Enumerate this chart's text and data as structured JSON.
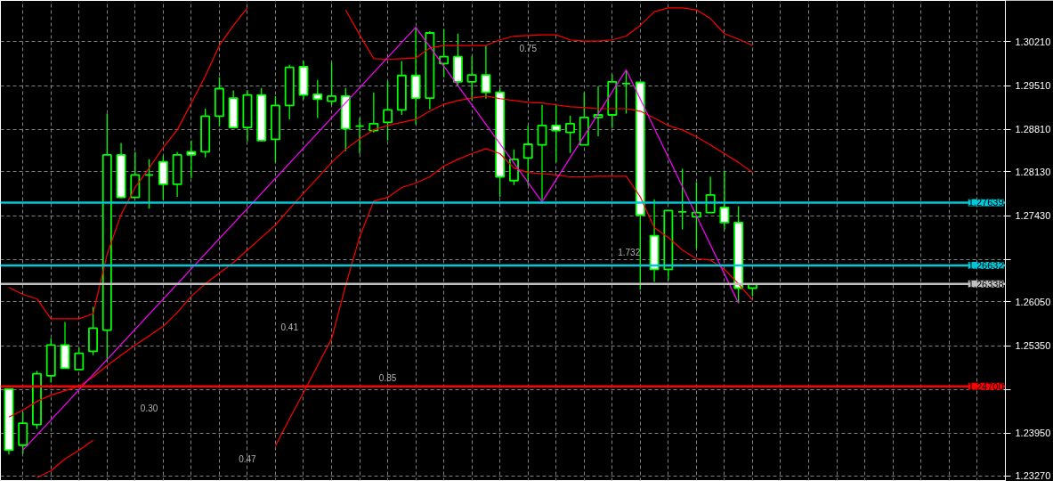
{
  "chart_data": {
    "type": "candlestick",
    "categories": [
      null,
      null,
      null,
      null,
      null,
      null,
      null,
      null,
      null,
      null,
      null,
      null,
      null,
      null,
      null,
      null,
      null,
      null,
      null,
      null,
      null,
      null,
      null,
      null,
      null,
      null,
      null,
      null,
      null,
      null,
      null,
      null,
      null,
      null,
      null,
      null,
      null,
      null,
      null,
      null,
      null,
      null,
      null,
      null,
      null,
      null,
      null,
      null,
      null,
      null,
      null,
      null,
      null,
      null
    ],
    "ylim": [
      1.2318,
      1.3087
    ],
    "yticks": [
      {
        "value": 1.3021,
        "label": "1.30210"
      },
      {
        "value": 1.2951,
        "label": "1.29510"
      },
      {
        "value": 1.2881,
        "label": "1.28810"
      },
      {
        "value": 1.2813,
        "label": "1.28130"
      },
      {
        "value": 1.2743,
        "label": "1.27430"
      },
      {
        "value": 1.2673,
        "label": null
      },
      {
        "value": 1.2605,
        "label": "1.26050"
      },
      {
        "value": 1.2535,
        "label": "1.25350"
      },
      {
        "value": 1.2465,
        "label": null
      },
      {
        "value": 1.2395,
        "label": "1.23950"
      },
      {
        "value": 1.2327,
        "label": "1.23270"
      }
    ],
    "tick_labels": "y",
    "grid": true,
    "series": [
      {
        "color": "#00ff00",
        "colors": [
          "#ffffff",
          "#000000",
          "#000000",
          "#000000",
          "#ffffff",
          "#000000",
          "#000000",
          "#000000",
          "#ffffff",
          "#000000",
          "#00ff00",
          "#ffffff",
          "#000000",
          "#ffffff",
          "#000000",
          "#000000",
          "#ffffff",
          "#000000",
          "#ffffff",
          "#000000",
          "#000000",
          "#ffffff",
          "#ffffff",
          "#000000",
          "#ffffff",
          "#00ff00",
          "#000000",
          "#000000",
          "#000000",
          "#ffffff",
          "#000000",
          "#000000",
          "#ffffff",
          "#000000",
          "#ffffff",
          "#ffffff",
          "#000000",
          "#000000",
          "#000000",
          "#ffffff",
          "#000000",
          "#000000",
          "#000000",
          "#000000",
          "#00ff00",
          "#ffffff",
          "#ffffff",
          "#000000",
          "#00ff00",
          "#000000",
          "#000000",
          "#ffffff",
          "#ffffff",
          "#000000"
        ],
        "ohlc": [
          [
            1.2466,
            1.2466,
            1.2361,
            1.2368
          ],
          [
            1.2376,
            1.2429,
            1.2362,
            1.2411
          ],
          [
            1.2409,
            1.2495,
            1.2402,
            1.249
          ],
          [
            1.2487,
            1.2547,
            1.2476,
            1.2536
          ],
          [
            1.2536,
            1.2573,
            1.2499,
            1.2499
          ],
          [
            1.2497,
            1.2532,
            1.2497,
            1.2523
          ],
          [
            1.2526,
            1.2597,
            1.252,
            1.2563
          ],
          [
            1.256,
            1.2906,
            1.251,
            1.284
          ],
          [
            1.284,
            1.2859,
            1.2771,
            1.2772
          ],
          [
            1.2772,
            1.2845,
            1.2772,
            1.2808
          ],
          [
            1.2808,
            1.2833,
            1.2754,
            1.2808
          ],
          [
            1.2829,
            1.2839,
            1.2768,
            1.2793
          ],
          [
            1.2793,
            1.2845,
            1.2773,
            1.284
          ],
          [
            1.2845,
            1.2863,
            1.2803,
            1.284
          ],
          [
            1.2845,
            1.2914,
            1.2836,
            1.2902
          ],
          [
            1.2902,
            1.2964,
            1.2886,
            1.2946
          ],
          [
            1.2931,
            1.2943,
            1.2884,
            1.2884
          ],
          [
            1.2884,
            1.2944,
            1.2862,
            1.2936
          ],
          [
            1.2936,
            1.2947,
            1.2862,
            1.2863
          ],
          [
            1.2865,
            1.2934,
            1.2828,
            1.2919
          ],
          [
            1.2919,
            1.2984,
            1.2897,
            1.298
          ],
          [
            1.2981,
            1.299,
            1.2929,
            1.2936
          ],
          [
            1.2937,
            1.296,
            1.2899,
            1.2929
          ],
          [
            1.2926,
            1.2988,
            1.292,
            1.2934
          ],
          [
            1.2934,
            1.2947,
            1.2846,
            1.2882
          ],
          [
            1.2886,
            1.2899,
            1.2842,
            1.2886
          ],
          [
            1.2879,
            1.294,
            1.2876,
            1.289
          ],
          [
            1.2892,
            1.2958,
            1.2863,
            1.2912
          ],
          [
            1.2912,
            1.299,
            1.2904,
            1.2967
          ],
          [
            1.2967,
            1.3044,
            1.2889,
            1.2931
          ],
          [
            1.2931,
            1.3038,
            1.2913,
            1.3035
          ],
          [
            1.2986,
            1.3041,
            1.2964,
            1.2997
          ],
          [
            1.2997,
            1.3034,
            1.2951,
            1.2957
          ],
          [
            1.2957,
            1.2998,
            1.2927,
            1.2968
          ],
          [
            1.2968,
            1.3015,
            1.293,
            1.294
          ],
          [
            1.294,
            1.2947,
            1.2773,
            1.2805
          ],
          [
            1.2799,
            1.2849,
            1.2792,
            1.2833
          ],
          [
            1.2835,
            1.2887,
            1.2792,
            1.2857
          ],
          [
            1.2856,
            1.292,
            1.2768,
            1.2887
          ],
          [
            1.2887,
            1.292,
            1.2828,
            1.2879
          ],
          [
            1.2876,
            1.2903,
            1.2843,
            1.289
          ],
          [
            1.2856,
            1.294,
            1.2856,
            1.29
          ],
          [
            1.29,
            1.295,
            1.287,
            1.2904
          ],
          [
            1.2904,
            1.2968,
            1.2883,
            1.2957
          ],
          [
            1.2954,
            1.2974,
            1.2906,
            1.2954
          ],
          [
            1.2956,
            1.2956,
            1.2625,
            1.2744
          ],
          [
            1.2711,
            1.2769,
            1.2637,
            1.2657
          ],
          [
            1.2657,
            1.2751,
            1.264,
            1.2751
          ],
          [
            1.2749,
            1.2818,
            1.2721,
            1.2749
          ],
          [
            1.2741,
            1.2796,
            1.269,
            1.2748
          ],
          [
            1.2748,
            1.2805,
            1.2748,
            1.2776
          ],
          [
            1.2756,
            1.2815,
            1.2721,
            1.2732
          ],
          [
            1.2732,
            1.2758,
            1.2603,
            1.2627
          ],
          [
            1.2627,
            1.2633,
            1.2614,
            1.2633
          ]
        ]
      },
      {
        "type": "line",
        "color": "#ff0000",
        "values": [
          1.2628,
          1.2617,
          1.261,
          1.2578,
          1.2578,
          1.2578,
          1.2586,
          1.2681,
          1.2745,
          1.2788,
          1.2819,
          1.2852,
          1.288,
          1.2923,
          1.2966,
          1.3015,
          1.3047,
          1.3075,
          null,
          null,
          null,
          null,
          null,
          null,
          1.3072,
          1.3032,
          1.2994,
          1.2993,
          1.2994,
          1.2995,
          1.3011,
          1.3015,
          1.3015,
          1.3015,
          1.3015,
          1.3024,
          1.303,
          1.3031,
          1.3032,
          1.3032,
          1.3024,
          1.3022,
          1.3022,
          1.3024,
          1.303,
          1.3047,
          1.3069,
          1.3075,
          1.3075,
          1.3072,
          1.3058,
          1.3034,
          1.3025,
          1.3015
        ]
      },
      {
        "type": "line",
        "color": "#ff0000",
        "values": [
          1.2421,
          1.2432,
          1.2446,
          1.2456,
          1.2463,
          1.247,
          1.2485,
          1.2503,
          1.252,
          1.2536,
          1.2551,
          1.2566,
          1.2588,
          1.2614,
          1.2634,
          1.2651,
          1.2668,
          1.2688,
          1.2708,
          1.2728,
          1.2754,
          1.2779,
          1.2803,
          1.2828,
          1.2849,
          1.2866,
          1.288,
          1.2887,
          1.2892,
          1.2897,
          1.291,
          1.2921,
          1.2927,
          1.2931,
          1.2934,
          1.293,
          1.2927,
          1.2924,
          1.2923,
          1.292,
          1.2917,
          1.2916,
          1.2914,
          1.2914,
          1.2914,
          1.291,
          1.2899,
          1.2887,
          1.288,
          1.2869,
          1.2856,
          1.2842,
          1.2828,
          1.2812
        ]
      },
      {
        "type": "line",
        "color": "#ff0000",
        "values": [
          null,
          null,
          1.2324,
          1.2335,
          1.2354,
          1.2368,
          1.2384,
          null,
          null,
          null,
          null,
          null,
          null,
          null,
          null,
          null,
          null,
          null,
          null,
          1.2375,
          1.2418,
          1.246,
          1.2503,
          1.2546,
          1.2631,
          1.2709,
          1.2766,
          1.2772,
          1.2788,
          1.2795,
          1.2805,
          1.2822,
          1.2833,
          1.2842,
          1.285,
          1.2842,
          1.2819,
          1.2812,
          1.281,
          1.2808,
          1.2805,
          1.2805,
          1.2806,
          1.2806,
          1.2806,
          1.2773,
          1.2724,
          1.2708,
          1.2688,
          1.2674,
          1.2672,
          1.2657,
          1.2634,
          1.2608
        ]
      },
      {
        "type": "line",
        "color": "#ff00ff",
        "values": [
          null,
          1.2368,
          null,
          null,
          null,
          null,
          null,
          null,
          null,
          null,
          null,
          null,
          null,
          null,
          null,
          null,
          null,
          null,
          null,
          null,
          null,
          null,
          null,
          null,
          null,
          null,
          null,
          null,
          null,
          1.3044,
          null,
          null,
          null,
          null,
          null,
          null,
          null,
          null,
          1.2765,
          null,
          null,
          null,
          null,
          null,
          1.2976,
          null,
          null,
          null,
          null,
          null,
          null,
          null,
          1.2603,
          null
        ]
      }
    ],
    "ref_lines": [
      {
        "axis": "y",
        "value": 1.27639,
        "label": "1.27639",
        "color": "#00c8d8"
      },
      {
        "axis": "y",
        "value": 1.26632,
        "label": "1.26632",
        "color": "#00c8d8"
      },
      {
        "axis": "y",
        "value": 1.26338,
        "label": "1.26338",
        "color": "#c0c0c0"
      },
      {
        "axis": "y",
        "value": 1.247,
        "label": "1.24700",
        "color": "#ff0000"
      }
    ],
    "annotations": [
      "0.75",
      "0.41",
      "0.85",
      "0.30",
      "0.47",
      "1.732"
    ]
  }
}
